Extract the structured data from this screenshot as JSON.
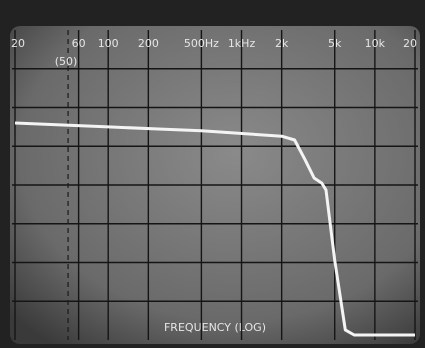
{
  "chart_data": {
    "type": "line",
    "x_label": "FREQUENCY (LOG)",
    "annotation": "(50)",
    "annotation_x": 50,
    "x": [
      20,
      100,
      500,
      2000,
      2500,
      3000,
      3500,
      4000,
      4300,
      5000,
      6000,
      7000,
      20000
    ],
    "values": [
      5.6,
      5.5,
      5.4,
      5.26,
      5.16,
      4.65,
      4.18,
      4.05,
      3.87,
      2.06,
      0.26,
      0.13,
      0.13
    ],
    "color": "#f4f4f4",
    "xlim": [
      20,
      20000
    ],
    "ylim": [
      0,
      8
    ],
    "log_x": true,
    "grid": true,
    "xticks": [
      20,
      60,
      100,
      200,
      {
        "value": 500,
        "label": "500Hz"
      },
      {
        "value": 1000,
        "label": "1kHz"
      },
      {
        "value": 2000,
        "label": "2k"
      },
      {
        "value": 5000,
        "label": "5k"
      },
      {
        "value": 10000,
        "label": "10k"
      },
      {
        "value": 20000,
        "label": "20"
      }
    ]
  }
}
